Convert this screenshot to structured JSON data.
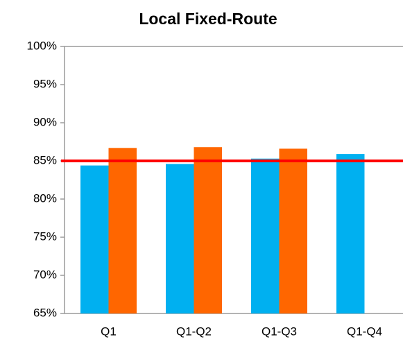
{
  "chart_data": {
    "type": "bar",
    "title": "Local Fixed-Route",
    "categories": [
      "Q1",
      "Q1-Q2",
      "Q1-Q3",
      "Q1-Q4"
    ],
    "series": [
      {
        "color": "#00b0f0",
        "values": [
          84.4,
          84.6,
          85.3,
          85.9
        ]
      },
      {
        "color": "#ff6600",
        "values": [
          86.7,
          86.8,
          86.6,
          null
        ]
      }
    ],
    "reference_line": {
      "value": 85,
      "color": "#ff0000"
    },
    "ylim": [
      65,
      100
    ],
    "yticks": [
      {
        "value": 65,
        "label": "65%"
      },
      {
        "value": 70,
        "label": "70%"
      },
      {
        "value": 75,
        "label": "75%"
      },
      {
        "value": 80,
        "label": "80%"
      },
      {
        "value": 85,
        "label": "85%"
      },
      {
        "value": 90,
        "label": "90%"
      },
      {
        "value": 95,
        "label": "95%"
      },
      {
        "value": 100,
        "label": "100%"
      }
    ],
    "grid": false
  }
}
